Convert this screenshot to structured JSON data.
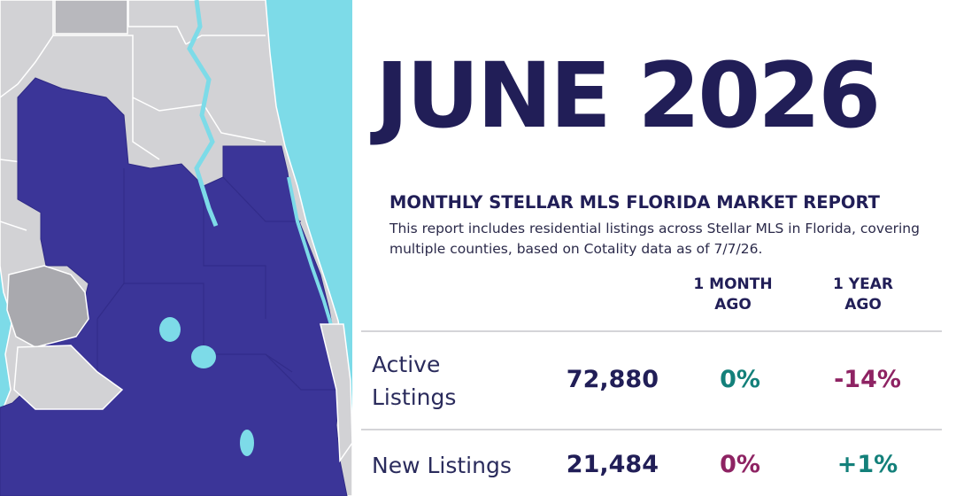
{
  "headline": "JUNE 2026",
  "report": {
    "title": "MONTHLY STELLAR MLS FLORIDA MARKET REPORT",
    "description": "This report includes residential listings across Stellar MLS in Florida, covering multiple counties, based on Cotality data as of 7/7/26."
  },
  "columns": {
    "month": "1 MONTH\nAGO",
    "year": "1 YEAR\nAGO"
  },
  "rows": [
    {
      "label": "Active Listings",
      "value": "72,880",
      "month_change": "0%",
      "year_change": "-14%"
    },
    {
      "label": "New Listings",
      "value": "21,484",
      "month_change": "0%",
      "year_change": "+1%"
    }
  ],
  "colors": {
    "navy": "#211e57",
    "teal_positive": "#13807a",
    "magenta_negative": "#8e2363",
    "map_highlight": "#3b3598",
    "map_gray": "#cfcfd2",
    "water": "#7ddbe8"
  },
  "map": {
    "icon": "florida-county-map"
  }
}
